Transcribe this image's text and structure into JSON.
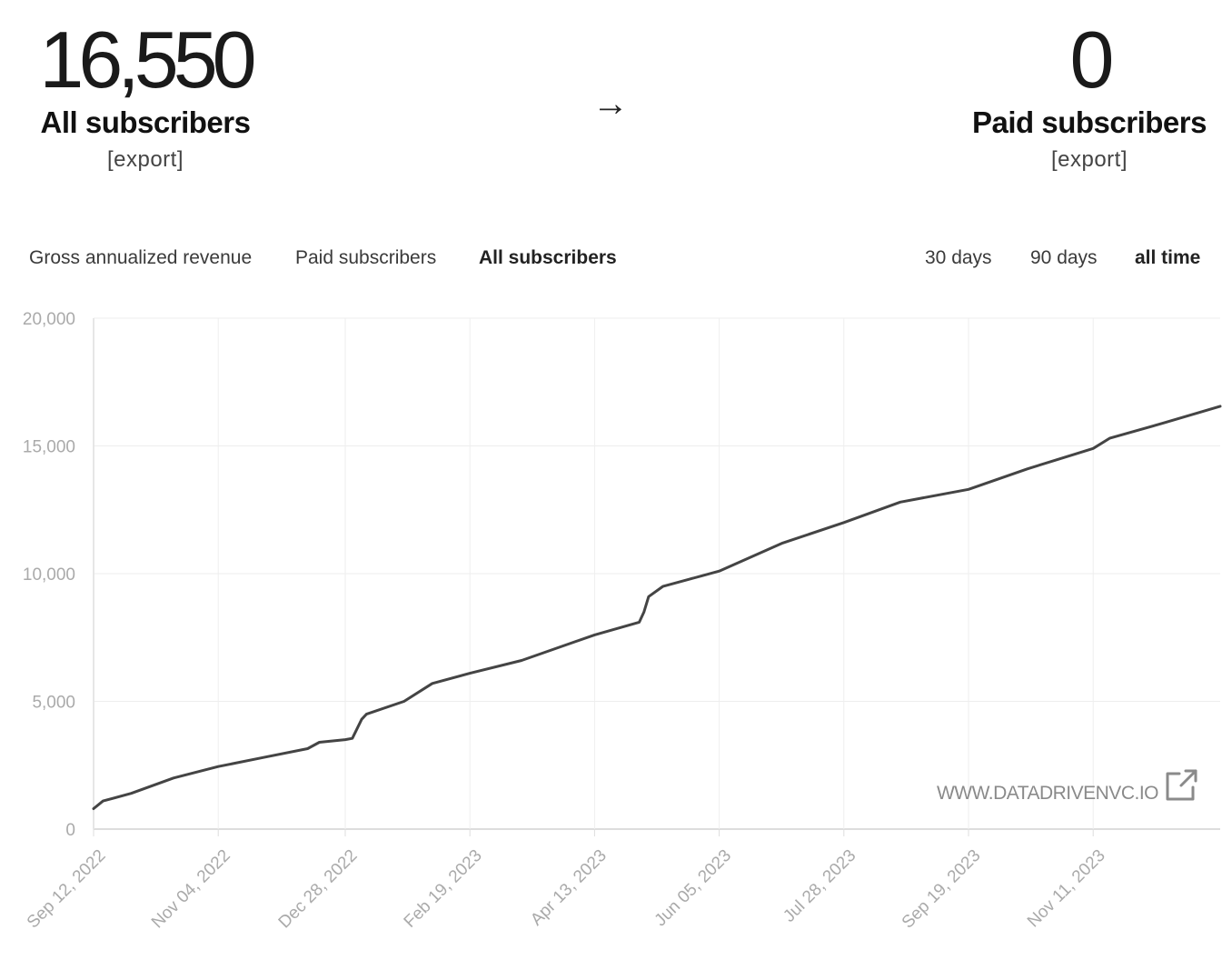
{
  "summary": {
    "all_subscribers": {
      "value": "16,550",
      "label": "All subscribers",
      "export": "[export]"
    },
    "arrow": "→",
    "paid_subscribers": {
      "value": "0",
      "label": "Paid subscribers",
      "export": "[export]"
    }
  },
  "metric_tabs": [
    {
      "label": "Gross annualized revenue",
      "active": false
    },
    {
      "label": "Paid subscribers",
      "active": false
    },
    {
      "label": "All subscribers",
      "active": true
    }
  ],
  "range_tabs": [
    {
      "label": "30 days",
      "active": false
    },
    {
      "label": "90 days",
      "active": false
    },
    {
      "label": "all time",
      "active": true
    }
  ],
  "watermark": "WWW.DATADRIVENVC.IO",
  "watermark_icon": "external-link-icon",
  "colors": {
    "line": "#444444",
    "grid": "#eeeeee",
    "axis": "#dddddd",
    "ticks": "#aaaaaa"
  },
  "chart_data": {
    "type": "line",
    "grid": true,
    "ylim": [
      0,
      20000
    ],
    "yticks": [
      0,
      5000,
      10000,
      15000,
      20000
    ],
    "ytick_labels": [
      "0",
      "5,000",
      "10,000",
      "15,000",
      "20,000"
    ],
    "xlim": [
      "2022-09-12",
      "2024-01-04"
    ],
    "xticks": [
      "2022-09-12",
      "2022-11-04",
      "2022-12-28",
      "2023-02-19",
      "2023-04-13",
      "2023-06-05",
      "2023-07-28",
      "2023-09-19",
      "2023-11-11"
    ],
    "xtick_labels": [
      "Sep 12, 2022",
      "Nov 04, 2022",
      "Dec 28, 2022",
      "Feb 19, 2023",
      "Apr 13, 2023",
      "Jun 05, 2023",
      "Jul 28, 2023",
      "Sep 19, 2023",
      "Nov 11, 2023"
    ],
    "series": [
      {
        "x": [
          "2022-09-12",
          "2022-09-16",
          "2022-09-28",
          "2022-10-16",
          "2022-11-04",
          "2022-11-23",
          "2022-12-12",
          "2022-12-17",
          "2022-12-28",
          "2022-12-31",
          "2023-01-04",
          "2023-01-06",
          "2023-01-22",
          "2023-02-03",
          "2023-02-19",
          "2023-03-13",
          "2023-04-13",
          "2023-05-02",
          "2023-05-04",
          "2023-05-06",
          "2023-05-12",
          "2023-06-05",
          "2023-07-02",
          "2023-07-28",
          "2023-08-21",
          "2023-09-19",
          "2023-10-14",
          "2023-11-04",
          "2023-11-11",
          "2023-11-18",
          "2023-12-11",
          "2024-01-04"
        ],
        "y": [
          800,
          1100,
          1400,
          2000,
          2450,
          2800,
          3150,
          3400,
          3500,
          3550,
          4300,
          4500,
          5000,
          5700,
          6100,
          6600,
          7600,
          8100,
          8500,
          9100,
          9500,
          10100,
          11200,
          12000,
          12800,
          13300,
          14100,
          14700,
          14900,
          15300,
          15900,
          16550
        ]
      }
    ]
  }
}
